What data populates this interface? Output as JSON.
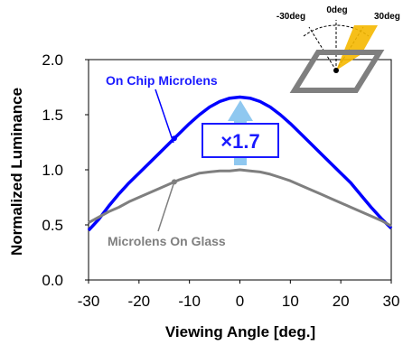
{
  "chart_data": {
    "type": "line",
    "xlabel": "Viewing Angle [deg.]",
    "ylabel": "Normalized Luminance",
    "xlim": [
      -30,
      30
    ],
    "ylim": [
      0.0,
      2.0
    ],
    "x_ticks": [
      "-30",
      "-20",
      "-10",
      "0",
      "10",
      "20",
      "30"
    ],
    "y_ticks": [
      "0.0",
      "0.5",
      "1.0",
      "1.5",
      "2.0"
    ],
    "grid": false,
    "series": [
      {
        "name": "On Chip Microlens",
        "color": "#0000ff",
        "x": [
          -30,
          -28,
          -26,
          -24,
          -22,
          -20,
          -18,
          -16,
          -14,
          -12,
          -10,
          -8,
          -6,
          -4,
          -2,
          0,
          2,
          4,
          6,
          8,
          10,
          12,
          14,
          16,
          18,
          20,
          22,
          24,
          26,
          28,
          30
        ],
        "y": [
          0.45,
          0.55,
          0.67,
          0.78,
          0.88,
          0.97,
          1.06,
          1.15,
          1.24,
          1.33,
          1.42,
          1.5,
          1.57,
          1.62,
          1.65,
          1.66,
          1.65,
          1.62,
          1.57,
          1.5,
          1.42,
          1.33,
          1.24,
          1.15,
          1.06,
          0.97,
          0.88,
          0.77,
          0.66,
          0.56,
          0.47
        ]
      },
      {
        "name": "Microlens On Glass",
        "color": "#7f7f7f",
        "x": [
          -30,
          -28,
          -26,
          -24,
          -22,
          -20,
          -18,
          -16,
          -14,
          -12,
          -10,
          -8,
          -6,
          -4,
          -2,
          0,
          2,
          4,
          6,
          8,
          10,
          12,
          14,
          16,
          18,
          20,
          22,
          24,
          26,
          28,
          30
        ],
        "y": [
          0.52,
          0.57,
          0.62,
          0.66,
          0.71,
          0.75,
          0.79,
          0.83,
          0.87,
          0.91,
          0.94,
          0.97,
          0.98,
          0.99,
          0.99,
          1.0,
          0.99,
          0.98,
          0.96,
          0.93,
          0.9,
          0.86,
          0.82,
          0.78,
          0.74,
          0.7,
          0.66,
          0.62,
          0.58,
          0.54,
          0.49
        ]
      }
    ],
    "annotations": {
      "ratio_label": "×1.7",
      "arrow_color": "#8fc8f0"
    },
    "inset": {
      "labels": [
        "-30deg",
        "0deg",
        "30deg"
      ],
      "frame_color": "#7f7f7f",
      "beam_color": "#f5b800"
    }
  }
}
